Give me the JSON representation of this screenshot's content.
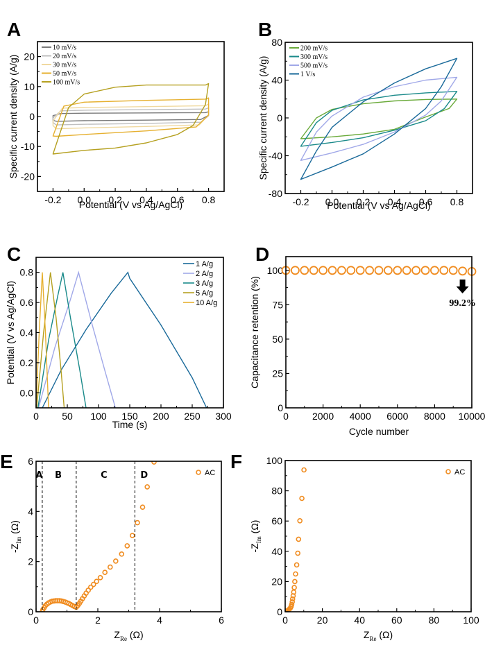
{
  "chart_data": [
    {
      "panel": "A",
      "type": "line",
      "title": "",
      "xlabel": "Potential (V vs Ag/AgCl)",
      "ylabel": "Specific current density (A/g)",
      "xlim": [
        -0.3,
        0.9
      ],
      "ylim": [
        -25,
        25
      ],
      "xticks": [
        -0.2,
        0.0,
        0.2,
        0.4,
        0.6,
        0.8
      ],
      "xtick_labels": [
        "-0.2",
        "0.0",
        "0.2",
        "0.4",
        "0.6",
        "0.8"
      ],
      "yticks": [
        -20,
        -10,
        0,
        10,
        20
      ],
      "ytick_labels": [
        "-20",
        "-10",
        "0",
        "10",
        "20"
      ],
      "legend_position": "top-left",
      "grid": false,
      "series": [
        {
          "name": "10 mV/s",
          "color": "#7a7a7a",
          "upper": [
            [
              -0.2,
              0.3
            ],
            [
              -0.15,
              1.0
            ],
            [
              0.0,
              1.1
            ],
            [
              0.4,
              1.2
            ],
            [
              0.78,
              1.3
            ],
            [
              0.8,
              1.6
            ]
          ],
          "lower": [
            [
              0.8,
              0.4
            ],
            [
              0.75,
              -1.0
            ],
            [
              0.4,
              -1.2
            ],
            [
              0.0,
              -1.4
            ],
            [
              -0.18,
              -1.6
            ],
            [
              -0.2,
              -1.2
            ]
          ]
        },
        {
          "name": "20 mV/s",
          "color": "#c0c0c0",
          "upper": [
            [
              -0.2,
              -0.5
            ],
            [
              -0.15,
              1.9
            ],
            [
              0.0,
              2.1
            ],
            [
              0.4,
              2.3
            ],
            [
              0.78,
              2.5
            ],
            [
              0.8,
              2.9
            ]
          ],
          "lower": [
            [
              0.8,
              0.2
            ],
            [
              0.75,
              -1.9
            ],
            [
              0.4,
              -2.3
            ],
            [
              0.0,
              -2.6
            ],
            [
              -0.18,
              -2.8
            ],
            [
              -0.2,
              -2.0
            ]
          ]
        },
        {
          "name": "30 mV/s",
          "color": "#f0d9a0",
          "upper": [
            [
              -0.2,
              -1.5
            ],
            [
              -0.14,
              2.8
            ],
            [
              0.0,
              3.0
            ],
            [
              0.4,
              3.3
            ],
            [
              0.78,
              3.6
            ],
            [
              0.8,
              4.2
            ]
          ],
          "lower": [
            [
              0.8,
              0.5
            ],
            [
              0.74,
              -2.8
            ],
            [
              0.4,
              -3.3
            ],
            [
              0.0,
              -3.8
            ],
            [
              -0.18,
              -4.1
            ],
            [
              -0.2,
              -3.0
            ]
          ]
        },
        {
          "name": "50 mV/s",
          "color": "#e6b030",
          "upper": [
            [
              -0.2,
              -6.5
            ],
            [
              -0.13,
              3.5
            ],
            [
              0.0,
              4.8
            ],
            [
              0.4,
              5.4
            ],
            [
              0.78,
              5.8
            ],
            [
              0.8,
              6.2
            ]
          ],
          "lower": [
            [
              0.8,
              0.5
            ],
            [
              0.72,
              -3.5
            ],
            [
              0.4,
              -4.8
            ],
            [
              0.0,
              -6.0
            ],
            [
              -0.18,
              -6.6
            ],
            [
              -0.2,
              -6.5
            ]
          ]
        },
        {
          "name": "100 mV/s",
          "color": "#b5a020",
          "upper": [
            [
              -0.2,
              -12.5
            ],
            [
              -0.1,
              3.0
            ],
            [
              0.0,
              7.5
            ],
            [
              0.2,
              9.8
            ],
            [
              0.4,
              10.5
            ],
            [
              0.78,
              10.5
            ],
            [
              0.8,
              11.0
            ]
          ],
          "lower": [
            [
              0.8,
              11.0
            ],
            [
              0.78,
              4.0
            ],
            [
              0.7,
              -3.0
            ],
            [
              0.6,
              -6.0
            ],
            [
              0.4,
              -8.8
            ],
            [
              0.2,
              -10.5
            ],
            [
              0.0,
              -11.3
            ],
            [
              -0.2,
              -12.5
            ]
          ]
        }
      ]
    },
    {
      "panel": "B",
      "type": "line",
      "title": "",
      "xlabel": "Potential (V vs Ag/AgCl)",
      "ylabel": "Specific current density (A/g)",
      "xlim": [
        -0.3,
        0.9
      ],
      "ylim": [
        -80,
        80
      ],
      "xticks": [
        -0.2,
        0.0,
        0.2,
        0.4,
        0.6,
        0.8
      ],
      "xtick_labels": [
        "-0.2",
        "0.0",
        "0.2",
        "0.4",
        "0.6",
        "0.8"
      ],
      "yticks": [
        -80,
        -40,
        0,
        40,
        80
      ],
      "ytick_labels": [
        "-80",
        "-40",
        "0",
        "40",
        "80"
      ],
      "legend_position": "top-left",
      "grid": false,
      "series": [
        {
          "name": "200 mV/s",
          "color": "#6aaa3a",
          "upper": [
            [
              -0.2,
              -22
            ],
            [
              -0.1,
              0
            ],
            [
              0.0,
              9
            ],
            [
              0.2,
              15
            ],
            [
              0.4,
              18
            ],
            [
              0.6,
              19.5
            ],
            [
              0.8,
              20
            ]
          ],
          "lower": [
            [
              0.8,
              20
            ],
            [
              0.75,
              10
            ],
            [
              0.6,
              1
            ],
            [
              0.4,
              -12
            ],
            [
              0.2,
              -17
            ],
            [
              0.0,
              -20
            ],
            [
              -0.2,
              -22
            ]
          ]
        },
        {
          "name": "300 mV/s",
          "color": "#1a8a8a",
          "upper": [
            [
              -0.2,
              -30
            ],
            [
              -0.1,
              -5
            ],
            [
              0.0,
              8
            ],
            [
              0.2,
              19
            ],
            [
              0.4,
              24
            ],
            [
              0.6,
              26.5
            ],
            [
              0.8,
              28
            ]
          ],
          "lower": [
            [
              0.8,
              28
            ],
            [
              0.72,
              10
            ],
            [
              0.6,
              -3
            ],
            [
              0.4,
              -13
            ],
            [
              0.2,
              -21
            ],
            [
              0.0,
              -26
            ],
            [
              -0.2,
              -30
            ]
          ]
        },
        {
          "name": "500 mV/s",
          "color": "#a0a8e8",
          "upper": [
            [
              -0.2,
              -45
            ],
            [
              -0.1,
              -15
            ],
            [
              0.0,
              2
            ],
            [
              0.2,
              22
            ],
            [
              0.4,
              33
            ],
            [
              0.6,
              40
            ],
            [
              0.8,
              43
            ]
          ],
          "lower": [
            [
              0.8,
              43
            ],
            [
              0.7,
              18
            ],
            [
              0.6,
              3
            ],
            [
              0.4,
              -15
            ],
            [
              0.2,
              -28
            ],
            [
              0.0,
              -37
            ],
            [
              -0.2,
              -45
            ]
          ]
        },
        {
          "name": "1 V/s",
          "color": "#1a6a9a",
          "upper": [
            [
              -0.2,
              -65
            ],
            [
              -0.1,
              -35
            ],
            [
              0.0,
              -10
            ],
            [
              0.2,
              17
            ],
            [
              0.4,
              37
            ],
            [
              0.6,
              52
            ],
            [
              0.8,
              63
            ]
          ],
          "lower": [
            [
              0.8,
              63
            ],
            [
              0.7,
              33
            ],
            [
              0.6,
              10
            ],
            [
              0.4,
              -17
            ],
            [
              0.2,
              -38
            ],
            [
              0.0,
              -52
            ],
            [
              -0.2,
              -65
            ]
          ]
        }
      ]
    },
    {
      "panel": "C",
      "type": "line",
      "title": "",
      "xlabel": "Time (s)",
      "ylabel": "Potential (V vs Ag/AgCl)",
      "xlim": [
        0,
        300
      ],
      "ylim": [
        -0.1,
        0.9
      ],
      "xticks": [
        0,
        50,
        100,
        150,
        200,
        250,
        300
      ],
      "xtick_labels": [
        "0",
        "50",
        "100",
        "150",
        "200",
        "250",
        "300"
      ],
      "yticks": [
        0.0,
        0.2,
        0.4,
        0.6,
        0.8
      ],
      "ytick_labels": [
        "0.0",
        "0.2",
        "0.4",
        "0.6",
        "0.8"
      ],
      "legend_position": "top-right",
      "grid": false,
      "series": [
        {
          "name": "1 A/g",
          "color": "#1a6a9a",
          "points": [
            [
              10,
              -0.1
            ],
            [
              40,
              0.15
            ],
            [
              80,
              0.42
            ],
            [
              120,
              0.66
            ],
            [
              147,
              0.8
            ],
            [
              150,
              0.76
            ],
            [
              200,
              0.45
            ],
            [
              250,
              0.1
            ],
            [
              273,
              -0.1
            ]
          ]
        },
        {
          "name": "2 A/g",
          "color": "#a0a8e8",
          "points": [
            [
              4,
              -0.1
            ],
            [
              30,
              0.3
            ],
            [
              55,
              0.62
            ],
            [
              68,
              0.8
            ],
            [
              90,
              0.45
            ],
            [
              110,
              0.15
            ],
            [
              127,
              -0.1
            ]
          ]
        },
        {
          "name": "3 A/g",
          "color": "#1a8a8a",
          "points": [
            [
              3,
              -0.1
            ],
            [
              20,
              0.35
            ],
            [
              35,
              0.65
            ],
            [
              43,
              0.8
            ],
            [
              55,
              0.5
            ],
            [
              70,
              0.15
            ],
            [
              80,
              -0.1
            ]
          ]
        },
        {
          "name": "5 A/g",
          "color": "#b5a020",
          "points": [
            [
              1,
              -0.1
            ],
            [
              12,
              0.4
            ],
            [
              23,
              0.8
            ],
            [
              32,
              0.5
            ],
            [
              40,
              0.15
            ],
            [
              45,
              -0.1
            ]
          ]
        },
        {
          "name": "10 A/g",
          "color": "#e6b030",
          "points": [
            [
              0,
              -0.1
            ],
            [
              5,
              0.4
            ],
            [
              10,
              0.8
            ],
            [
              15,
              0.4
            ],
            [
              20,
              -0.1
            ]
          ]
        }
      ]
    },
    {
      "panel": "D",
      "type": "scatter",
      "title": "",
      "xlabel": "Cycle number",
      "ylabel": "Capacitance retention (%)",
      "xlim": [
        0,
        10000
      ],
      "ylim": [
        0,
        110
      ],
      "xticks": [
        0,
        2000,
        4000,
        6000,
        8000,
        10000
      ],
      "xtick_labels": [
        "0",
        "2000",
        "4000",
        "6000",
        "8000",
        "10000"
      ],
      "yticks": [
        0,
        25,
        50,
        75,
        100
      ],
      "ytick_labels": [
        "0",
        "25",
        "50",
        "75",
        "100"
      ],
      "grid": false,
      "marker_color": "#f08c20",
      "x": [
        0,
        500,
        1000,
        1500,
        2000,
        2500,
        3000,
        3500,
        4000,
        4500,
        5000,
        5500,
        6000,
        6500,
        7000,
        7500,
        8000,
        8500,
        9000,
        9500,
        10000
      ],
      "y": [
        100,
        100,
        100,
        100,
        100,
        100,
        100,
        100,
        100,
        100,
        100,
        100,
        100,
        100,
        100,
        100,
        100,
        100,
        100,
        99.5,
        99.2
      ],
      "annotation": {
        "text": "99.2%",
        "arrow": "down",
        "x": 9500,
        "y": 88
      }
    },
    {
      "panel": "E",
      "type": "scatter",
      "title": "",
      "xlabel": "Z_Re (Ω)",
      "xlabel_main": "Z",
      "xlabel_sub": "Re",
      "xlabel_unit": " (Ω)",
      "ylabel": "-Z_Im (Ω)",
      "ylabel_main": "-Z",
      "ylabel_sub": "Im",
      "ylabel_unit": " (Ω)",
      "xlim": [
        0,
        6
      ],
      "ylim": [
        0,
        6
      ],
      "xticks": [
        0,
        2,
        4,
        6
      ],
      "xtick_labels": [
        "0",
        "2",
        "4",
        "6"
      ],
      "yticks": [
        0,
        2,
        4,
        6
      ],
      "ytick_labels": [
        "0",
        "2",
        "4",
        "6"
      ],
      "legend": [
        {
          "name": "AC",
          "color": "#f08c20"
        }
      ],
      "legend_position": "top-right",
      "grid": false,
      "region_lines": [
        0.2,
        1.3,
        3.2
      ],
      "region_labels": [
        {
          "text": "A",
          "x": 0.1
        },
        {
          "text": "B",
          "x": 0.72
        },
        {
          "text": "C",
          "x": 2.2
        },
        {
          "text": "D",
          "x": 3.5
        }
      ],
      "x": [
        0.2,
        0.22,
        0.26,
        0.3,
        0.35,
        0.4,
        0.46,
        0.52,
        0.58,
        0.64,
        0.7,
        0.76,
        0.82,
        0.88,
        0.94,
        1.0,
        1.06,
        1.12,
        1.18,
        1.24,
        1.3,
        1.35,
        1.4,
        1.45,
        1.5,
        1.56,
        1.62,
        1.69,
        1.77,
        1.86,
        1.96,
        2.08,
        2.23,
        2.4,
        2.58,
        2.77,
        2.95,
        3.12,
        3.28,
        3.45,
        3.6,
        3.82
      ],
      "y": [
        0.0,
        0.08,
        0.16,
        0.24,
        0.3,
        0.35,
        0.39,
        0.42,
        0.43,
        0.44,
        0.44,
        0.44,
        0.43,
        0.41,
        0.39,
        0.36,
        0.33,
        0.29,
        0.25,
        0.21,
        0.18,
        0.25,
        0.33,
        0.42,
        0.52,
        0.63,
        0.74,
        0.86,
        0.98,
        1.09,
        1.21,
        1.36,
        1.57,
        1.78,
        2.02,
        2.3,
        2.63,
        3.04,
        3.55,
        4.17,
        4.98,
        5.97
      ]
    },
    {
      "panel": "F",
      "type": "scatter",
      "title": "",
      "xlabel": "Z_Re (Ω)",
      "xlabel_main": "Z",
      "xlabel_sub": "Re",
      "xlabel_unit": " (Ω)",
      "ylabel": "-Z_Im (Ω)",
      "ylabel_main": "-Z",
      "ylabel_sub": "Im",
      "ylabel_unit": " (Ω)",
      "xlim": [
        0,
        100
      ],
      "ylim": [
        0,
        100
      ],
      "xticks": [
        0,
        20,
        40,
        60,
        80,
        100
      ],
      "xtick_labels": [
        "0",
        "20",
        "40",
        "60",
        "80",
        "100"
      ],
      "yticks": [
        0,
        20,
        40,
        60,
        80,
        100
      ],
      "ytick_labels": [
        "0",
        "20",
        "40",
        "60",
        "80",
        "100"
      ],
      "legend": [
        {
          "name": "AC",
          "color": "#f08c20"
        }
      ],
      "legend_position": "top-right",
      "grid": false,
      "x": [
        0.3,
        0.8,
        1.3,
        1.8,
        2.3,
        2.8,
        3.2,
        3.5,
        3.8,
        4.0,
        4.3,
        4.6,
        4.9,
        5.2,
        5.6,
        6.2,
        6.8,
        7.2,
        7.9,
        9.0,
        10.1
      ],
      "y": [
        0.2,
        0.5,
        0.8,
        1.2,
        1.8,
        2.5,
        3.5,
        4.8,
        6.5,
        8.5,
        10.5,
        13.0,
        16.0,
        20.0,
        25.0,
        31.0,
        38.7,
        48.0,
        60.2,
        75.0,
        93.8
      ]
    }
  ]
}
